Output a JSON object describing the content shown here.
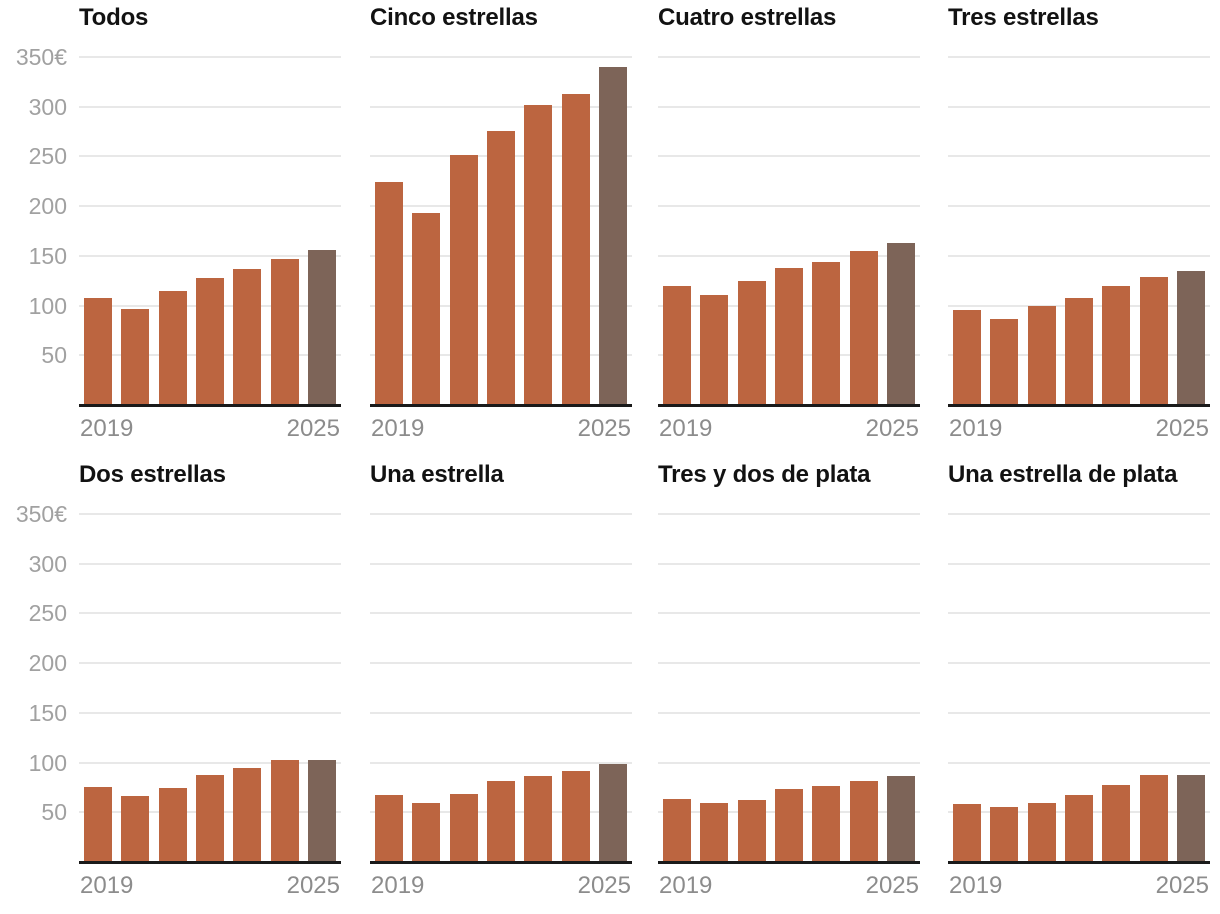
{
  "page": {
    "background": "#ffffff",
    "description_visible_text_only": true
  },
  "colors": {
    "bar": "#bc6540",
    "bar_final": "#7d6458",
    "gridline": "#e8e8e8",
    "baseline": "#1a1a1a",
    "y_tick_text": "#a1a1a1",
    "x_tick_text": "#8c8c8c",
    "title_text": "#121212"
  },
  "y_axis": {
    "max": 350,
    "min": 0,
    "tick_step": 50,
    "ticks": [
      "350€",
      "300",
      "250",
      "200",
      "150",
      "100",
      "50"
    ],
    "grid": true
  },
  "x_axis": {
    "start_label": "2019",
    "end_label": "2025"
  },
  "chart_data": [
    {
      "type": "bar",
      "title": "Todos",
      "years": [
        2019,
        2020,
        2021,
        2022,
        2023,
        2024,
        2025
      ],
      "values": [
        108,
        97,
        115,
        128,
        137,
        147,
        156
      ],
      "unit": "€",
      "ylim": [
        0,
        350
      ],
      "highlight_last_bar": true
    },
    {
      "type": "bar",
      "title": "Cinco estrellas",
      "years": [
        2019,
        2020,
        2021,
        2022,
        2023,
        2024,
        2025
      ],
      "values": [
        224,
        193,
        251,
        276,
        302,
        313,
        340
      ],
      "unit": "€",
      "ylim": [
        0,
        350
      ],
      "highlight_last_bar": true
    },
    {
      "type": "bar",
      "title": "Cuatro estrellas",
      "years": [
        2019,
        2020,
        2021,
        2022,
        2023,
        2024,
        2025
      ],
      "values": [
        120,
        111,
        125,
        138,
        144,
        155,
        163
      ],
      "unit": "€",
      "ylim": [
        0,
        350
      ],
      "highlight_last_bar": true
    },
    {
      "type": "bar",
      "title": "Tres estrellas",
      "years": [
        2019,
        2020,
        2021,
        2022,
        2023,
        2024,
        2025
      ],
      "values": [
        96,
        87,
        100,
        108,
        120,
        129,
        135
      ],
      "unit": "€",
      "ylim": [
        0,
        350
      ],
      "highlight_last_bar": true
    },
    {
      "type": "bar",
      "title": "Dos estrellas",
      "years": [
        2019,
        2020,
        2021,
        2022,
        2023,
        2024,
        2025
      ],
      "values": [
        75,
        66,
        74,
        88,
        95,
        103,
        103
      ],
      "unit": "€",
      "ylim": [
        0,
        350
      ],
      "highlight_last_bar": true
    },
    {
      "type": "bar",
      "title": "Una estrella",
      "years": [
        2019,
        2020,
        2021,
        2022,
        2023,
        2024,
        2025
      ],
      "values": [
        67,
        59,
        68,
        81,
        87,
        92,
        99
      ],
      "unit": "€",
      "ylim": [
        0,
        350
      ],
      "highlight_last_bar": true
    },
    {
      "type": "bar",
      "title": "Tres y dos de plata",
      "years": [
        2019,
        2020,
        2021,
        2022,
        2023,
        2024,
        2025
      ],
      "values": [
        63,
        59,
        62,
        73,
        76,
        81,
        87
      ],
      "unit": "€",
      "ylim": [
        0,
        350
      ],
      "highlight_last_bar": true
    },
    {
      "type": "bar",
      "title": "Una estrella de plata",
      "years": [
        2019,
        2020,
        2021,
        2022,
        2023,
        2024,
        2025
      ],
      "values": [
        58,
        55,
        59,
        67,
        77,
        88,
        88
      ],
      "unit": "€",
      "ylim": [
        0,
        350
      ],
      "highlight_last_bar": true
    }
  ]
}
